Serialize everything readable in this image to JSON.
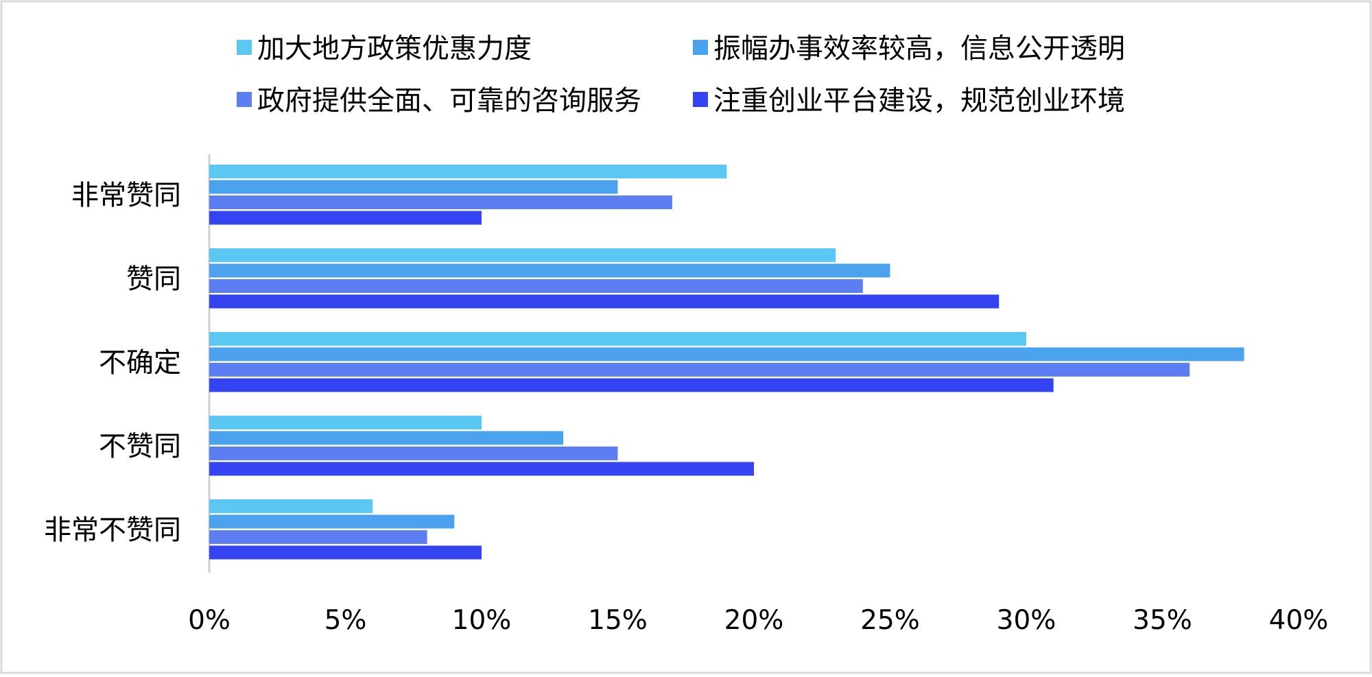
{
  "chart_data": {
    "type": "bar",
    "orientation": "horizontal",
    "title": "",
    "xlabel": "",
    "ylabel": "",
    "categories": [
      "非常赞同",
      "赞同",
      "不确定",
      "不赞同",
      "非常不赞同"
    ],
    "series": [
      {
        "name": "加大地方政策优惠力度",
        "color": "#5bc8f3",
        "values": [
          19,
          23,
          30,
          10,
          6
        ]
      },
      {
        "name": "振幅办事效率较高，信息公开透明",
        "color": "#4ba3f0",
        "values": [
          15,
          25,
          38,
          13,
          9
        ]
      },
      {
        "name": "政府提供全面、可靠的咨询服务",
        "color": "#5b7ef2",
        "values": [
          17,
          24,
          36,
          15,
          8
        ]
      },
      {
        "name": "注重创业平台建设，规范创业环境",
        "color": "#3444f0",
        "values": [
          10,
          29,
          31,
          20,
          10
        ]
      }
    ],
    "xlim": [
      0,
      40
    ],
    "xticks": [
      0,
      5,
      10,
      15,
      20,
      25,
      30,
      35,
      40
    ],
    "tick_suffix": "%",
    "grid": false,
    "legend_position": "top"
  }
}
